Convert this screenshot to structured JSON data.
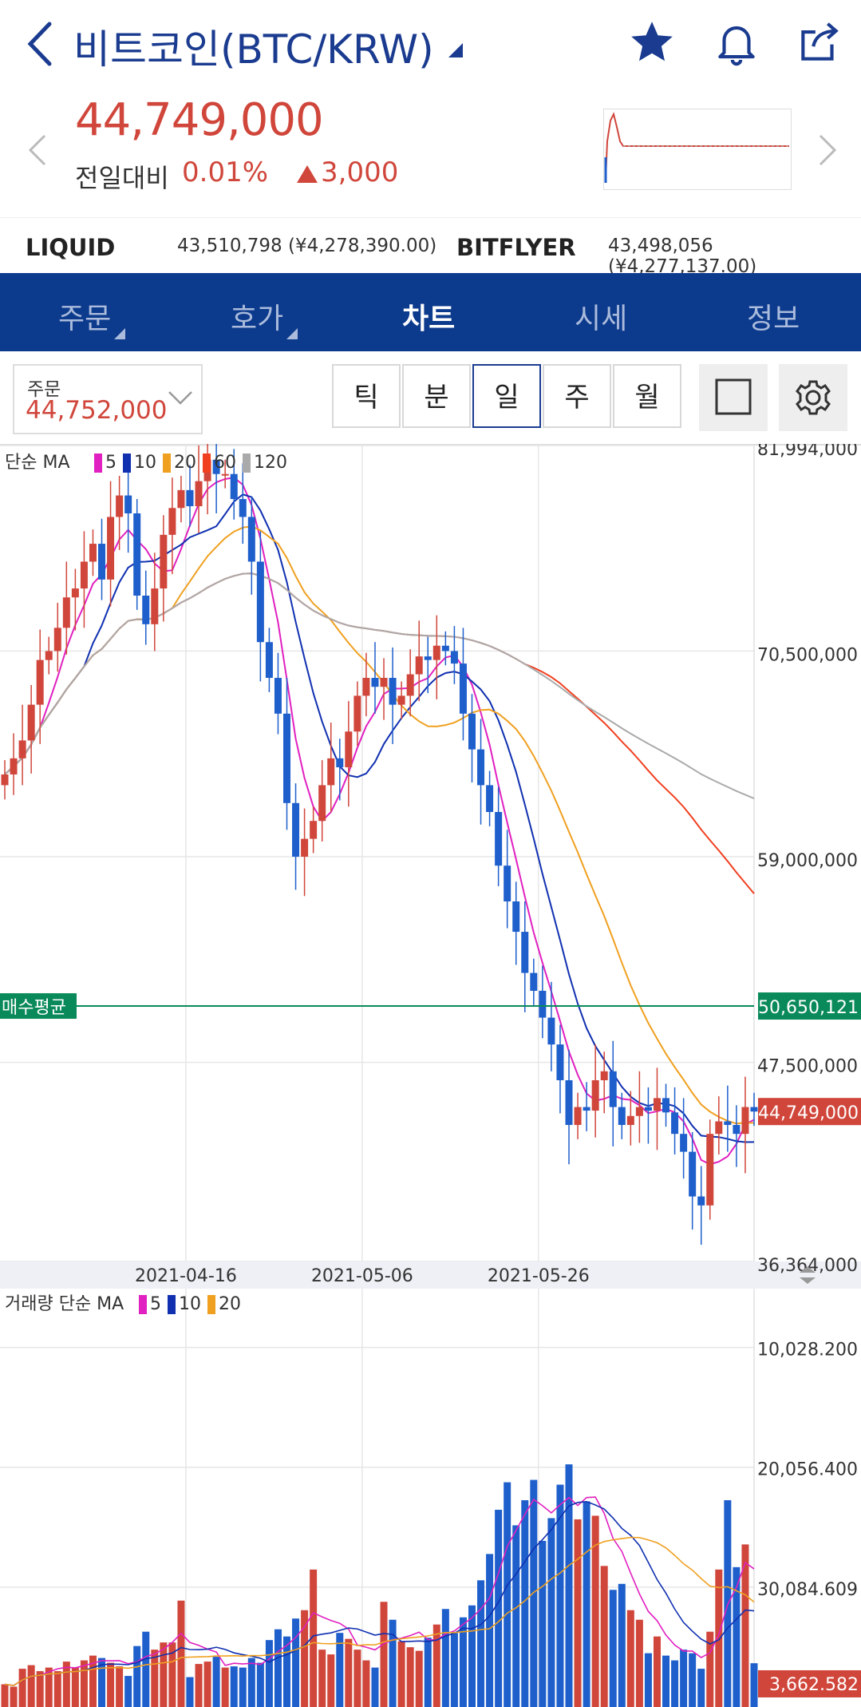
{
  "header": {
    "title": "비트코인(BTC/KRW)",
    "icons": [
      "back-arrow-icon",
      "dropdown-caret-icon",
      "star-icon",
      "bell-icon",
      "share-icon"
    ]
  },
  "price": {
    "current": "44,749,000",
    "change_label": "전일대비",
    "change_pct": "0.01%",
    "change_amt": "3,000",
    "color_up": "#d0463b"
  },
  "exchanges": [
    {
      "name": "LIQUID",
      "value": "43,510,798 (¥4,278,390.00)"
    },
    {
      "name": "BITFLYER",
      "value": "43,498,056 (¥4,277,137.00)"
    }
  ],
  "tabs": [
    {
      "label": "주문",
      "has_caret": true
    },
    {
      "label": "호가",
      "has_caret": true
    },
    {
      "label": "차트",
      "active": true
    },
    {
      "label": "시세"
    },
    {
      "label": "정보"
    }
  ],
  "order": {
    "label": "주문",
    "value": "44,752,000"
  },
  "periods": [
    "틱",
    "분",
    "일",
    "주",
    "월"
  ],
  "selected_period": "일",
  "chart": {
    "price_legend": {
      "prefix": "단순 MA",
      "items": [
        {
          "label": "5",
          "color": "#e020c0"
        },
        {
          "label": "10",
          "color": "#1030b0"
        },
        {
          "label": "20",
          "color": "#f0a020"
        },
        {
          "label": "60",
          "color": "#f04020"
        },
        {
          "label": "120",
          "color": "#aaaaaa"
        }
      ]
    },
    "price_axis": [
      "81,994,000",
      "70,500,000",
      "59,000,000",
      "47,500,000",
      "36,364,000"
    ],
    "avg_label": "매수평균",
    "avg_value": "50,650,121",
    "last_value": "44,749,000",
    "dates": [
      "2021-04-16",
      "2021-05-06",
      "2021-05-26"
    ],
    "volume_legend": {
      "prefix": "거래량 단순 MA",
      "items": [
        {
          "label": "5",
          "color": "#e020c0"
        },
        {
          "label": "10",
          "color": "#1030b0"
        },
        {
          "label": "20",
          "color": "#f0a020"
        }
      ]
    },
    "volume_axis": [
      "30,084.609",
      "20,056.400",
      "10,028.200"
    ],
    "volume_last": "3,662.582",
    "colors": {
      "up": "#d0463b",
      "down": "#1e5fcc",
      "avg_line": "#0a8a5a"
    }
  },
  "chart_data": {
    "type": "candlestick",
    "interval": "daily",
    "x_axis_labels": [
      "2021-04-16",
      "2021-05-06",
      "2021-05-26"
    ],
    "ylim": [
      36364000,
      81994000
    ],
    "close": [
      63.6,
      64.5,
      65.5,
      67.5,
      70.0,
      70.5,
      71.8,
      73.5,
      74.0,
      75.5,
      76.5,
      74.5,
      78.0,
      79.2,
      78.2,
      73.6,
      72.0,
      74.0,
      77.0,
      78.5,
      79.5,
      78.6,
      80.0,
      81.2,
      80.4,
      80.4,
      79.0,
      78.0,
      75.5,
      71.0,
      69.0,
      67.0,
      62.0,
      59.0,
      60.0,
      61.0,
      63.0,
      64.5,
      64.0,
      66.0,
      68.0,
      69.0,
      68.5,
      69.0,
      67.5,
      68.0,
      69.2,
      70.2,
      70.0,
      70.8,
      70.5,
      69.8,
      67.0,
      65.0,
      63.0,
      61.5,
      58.5,
      56.5,
      54.8,
      52.5,
      51.5,
      50.0,
      48.5,
      46.5,
      44.0,
      45.0,
      44.8,
      46.5,
      47.0,
      45.0,
      44.0,
      44.5,
      45.0,
      44.8,
      45.5,
      44.7,
      43.5,
      42.5,
      40.0,
      39.5,
      43.5,
      44.2,
      44.0,
      43.5,
      45.0,
      44.749
    ],
    "ma_periods": [
      5,
      10,
      20,
      60,
      120
    ],
    "buy_average": 50650121,
    "last_price": 44749000,
    "volume": {
      "ylim": [
        0,
        35000
      ],
      "ticks": [
        10028.2,
        20056.4,
        30084.609
      ],
      "values": [
        1900,
        1700,
        3200,
        3500,
        3000,
        3300,
        3000,
        3800,
        3300,
        3900,
        4300,
        4100,
        3700,
        3400,
        2600,
        5100,
        6300,
        4800,
        5400,
        5400,
        8900,
        2500,
        3600,
        3800,
        4200,
        3300,
        3400,
        3300,
        4100,
        3700,
        5600,
        6500,
        5900,
        7400,
        8100,
        11500,
        4800,
        4400,
        6200,
        5700,
        4800,
        3900,
        3300,
        8800,
        7300,
        5500,
        5000,
        4700,
        5800,
        6900,
        8200,
        6200,
        7500,
        8500,
        10600,
        12800,
        16500,
        18800,
        15200,
        17300,
        19000,
        13900,
        15800,
        18600,
        20300,
        15700,
        17200,
        16000,
        11800,
        9800,
        10300,
        8100,
        7300,
        4500,
        5900,
        4300,
        3900,
        4800,
        4500,
        3200,
        6300,
        11500,
        17300,
        11700,
        13600,
        3662.582
      ]
    }
  }
}
